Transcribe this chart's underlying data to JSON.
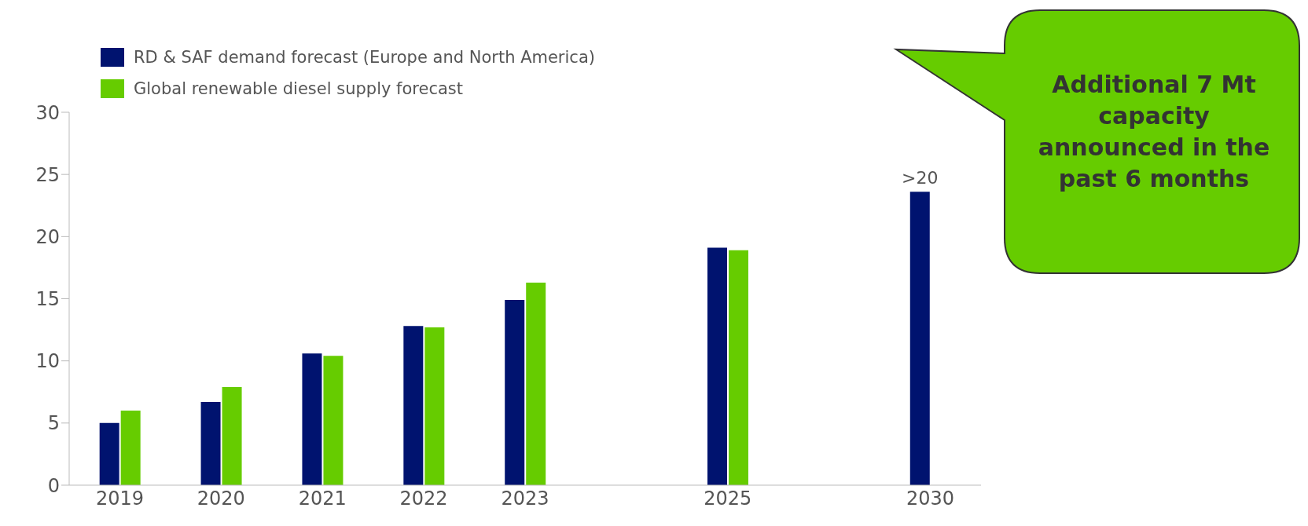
{
  "chart_data": {
    "type": "bar",
    "categories": [
      "2019",
      "2020",
      "2021",
      "2022",
      "2023",
      null,
      "2025",
      null,
      "2030"
    ],
    "series": [
      {
        "name": "RD & SAF demand forecast (Europe and North America)",
        "color": "#00136f",
        "values": [
          5.0,
          6.7,
          10.6,
          12.8,
          14.9,
          null,
          19.1,
          null,
          23.6
        ],
        "value_labels": [
          null,
          null,
          null,
          null,
          null,
          null,
          null,
          null,
          ">20"
        ]
      },
      {
        "name": "Global renewable diesel supply forecast",
        "color": "#66cc00",
        "values": [
          6.0,
          7.9,
          10.4,
          12.7,
          16.3,
          null,
          18.9,
          null,
          null
        ]
      }
    ],
    "ylim": [
      0,
      30
    ],
    "yticks": [
      0,
      5,
      10,
      15,
      20,
      25,
      30
    ],
    "legend": "top left",
    "annotations": [
      "Additional 7 Mt capacity announced in the past 6 months"
    ]
  }
}
